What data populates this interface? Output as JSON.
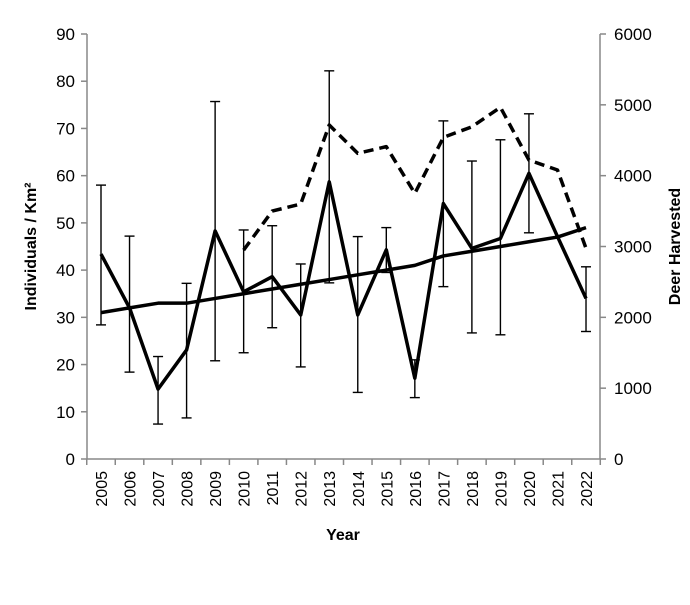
{
  "chart_data": {
    "type": "line",
    "xlabel": "Year",
    "ylabel": "Individuals / Km²",
    "y2label": "Deer Harvested",
    "ylim": [
      0,
      90
    ],
    "y2lim": [
      0,
      6000
    ],
    "yticks": [
      0,
      10,
      20,
      30,
      40,
      50,
      60,
      70,
      80,
      90
    ],
    "y2ticks": [
      0,
      1000,
      2000,
      3000,
      4000,
      5000,
      6000
    ],
    "grid": false,
    "categories": [
      "2005",
      "2006",
      "2007",
      "2008",
      "2009",
      "2010",
      "2011",
      "2012",
      "2013",
      "2014",
      "2015",
      "2016",
      "2017",
      "2018",
      "2019",
      "2020",
      "2021",
      "2022"
    ],
    "series": [
      {
        "axis": "left",
        "style": "solid",
        "values": [
          43.4,
          32.0,
          14.8,
          23.1,
          48.3,
          35.4,
          38.6,
          30.5,
          58.7,
          30.5,
          44.3,
          17.1,
          54.1,
          44.6,
          46.7,
          60.5,
          47.1,
          34.0
        ],
        "error_upper": [
          58.0,
          47.2,
          21.7,
          37.2,
          75.7,
          48.5,
          49.4,
          41.3,
          82.2,
          47.1,
          49.0,
          21.0,
          71.6,
          63.1,
          67.6,
          73.1,
          null,
          40.7
        ],
        "error_lower": [
          28.4,
          18.4,
          7.4,
          8.7,
          20.8,
          22.5,
          27.8,
          19.5,
          37.3,
          14.1,
          39.5,
          13.0,
          36.5,
          26.7,
          26.3,
          47.9,
          null,
          27.0
        ]
      },
      {
        "axis": "left",
        "style": "solid-smooth",
        "values": [
          31,
          32,
          33,
          33,
          34,
          35,
          36,
          37,
          38,
          39,
          40,
          41,
          43,
          44,
          45,
          46,
          47,
          49
        ]
      },
      {
        "axis": "right",
        "style": "dashed",
        "values": [
          null,
          null,
          null,
          null,
          null,
          2950,
          3500,
          3600,
          4715,
          4315,
          4410,
          3750,
          4540,
          4690,
          4965,
          4220,
          4080,
          2975
        ]
      }
    ],
    "colors": {
      "line": "#000000",
      "axis": "#888888"
    }
  }
}
